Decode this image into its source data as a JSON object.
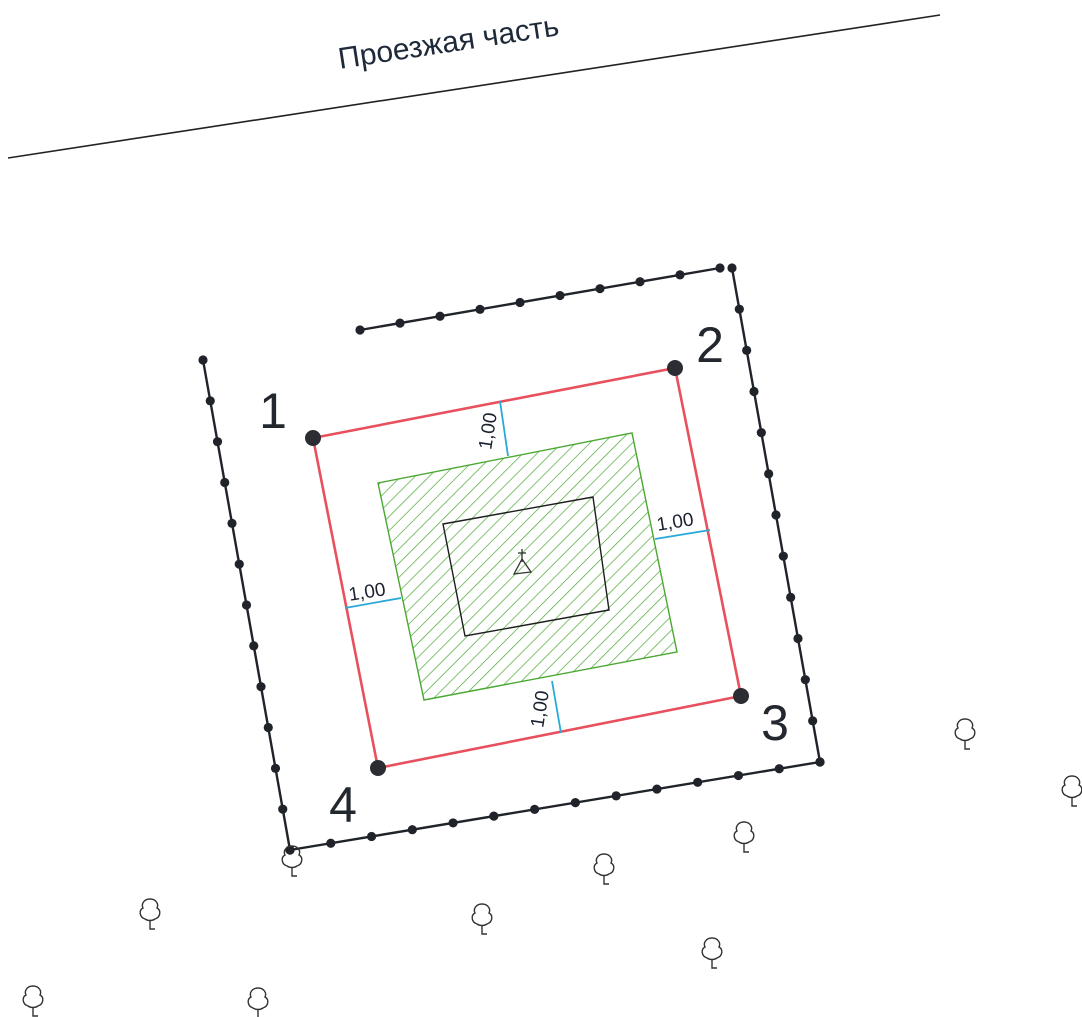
{
  "road": {
    "label": "Проезжая часть"
  },
  "points": [
    {
      "label": "1"
    },
    {
      "label": "2"
    },
    {
      "label": "3"
    },
    {
      "label": "4"
    }
  ],
  "dimensions": [
    {
      "label": "1,00"
    },
    {
      "label": "1,00"
    },
    {
      "label": "1,00"
    },
    {
      "label": "1,00"
    }
  ],
  "symbols": {
    "grave_marker": "cross-triangle-icon",
    "tree": "tree-icon"
  },
  "colors": {
    "plot_boundary": "#e8505e",
    "hatch_area": "#4aa832",
    "dimension_line": "#29a9d8",
    "fence": "#20232a"
  }
}
